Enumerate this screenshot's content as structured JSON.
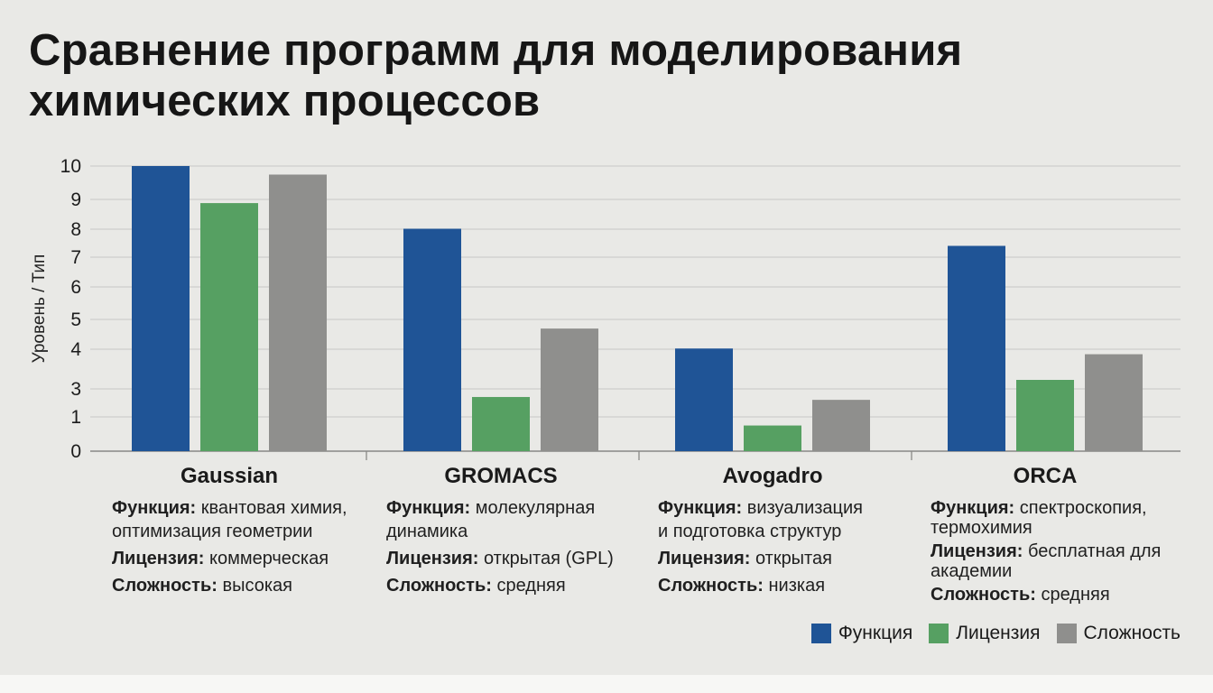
{
  "title_line1": "Сравнение программ для моделирования",
  "title_line2": "химических процессов",
  "chart_data": {
    "type": "bar",
    "title": "Сравнение программ для моделирования химических процессов",
    "ylabel": "Уровень / Тип",
    "xlabel": "",
    "y_ticks": [
      "10",
      "9",
      "8",
      "7",
      "6",
      "5",
      "4",
      "3",
      "1",
      "0"
    ],
    "categories": [
      "Gaussian",
      "GROMACS",
      "Avogadro",
      "ORCA"
    ],
    "series": [
      {
        "name": "Функция",
        "color": "#1f5496",
        "values": [
          10,
          7.8,
          3.6,
          7.2
        ]
      },
      {
        "name": "Лицензия",
        "color": "#56a062",
        "values": [
          8.7,
          1.9,
          0.9,
          2.5
        ]
      },
      {
        "name": "Сложность",
        "color": "#8f8f8d",
        "values": [
          9.7,
          4.3,
          1.8,
          3.4
        ]
      }
    ],
    "grid": true,
    "legend_position": "bottom-right"
  },
  "descriptions": [
    {
      "function_label": "Функция:",
      "function_lines": [
        "квантовая химия,",
        "оптимизация геометрии"
      ],
      "license_label": "Лицензия:",
      "license_lines": [
        "коммерческая"
      ],
      "complexity_label": "Сложность:",
      "complexity_value": "высокая"
    },
    {
      "function_label": "Функция:",
      "function_lines": [
        "молекулярная",
        "динамика"
      ],
      "license_label": "Лицензия:",
      "license_lines": [
        "открытая (GPL)"
      ],
      "complexity_label": "Сложность:",
      "complexity_value": "средняя"
    },
    {
      "function_label": "Функция:",
      "function_lines": [
        "визуализация",
        "и подготовка структур"
      ],
      "license_label": "Лицензия:",
      "license_lines": [
        "открытая"
      ],
      "complexity_label": "Сложность:",
      "complexity_value": "низкая"
    },
    {
      "function_label": "Функция:",
      "function_lines": [
        "спектроскопия,",
        "термохимия"
      ],
      "license_label": "Лицензия:",
      "license_lines": [
        "бесплатная для",
        "академии"
      ],
      "complexity_label": "Сложность:",
      "complexity_value": "средняя"
    }
  ]
}
